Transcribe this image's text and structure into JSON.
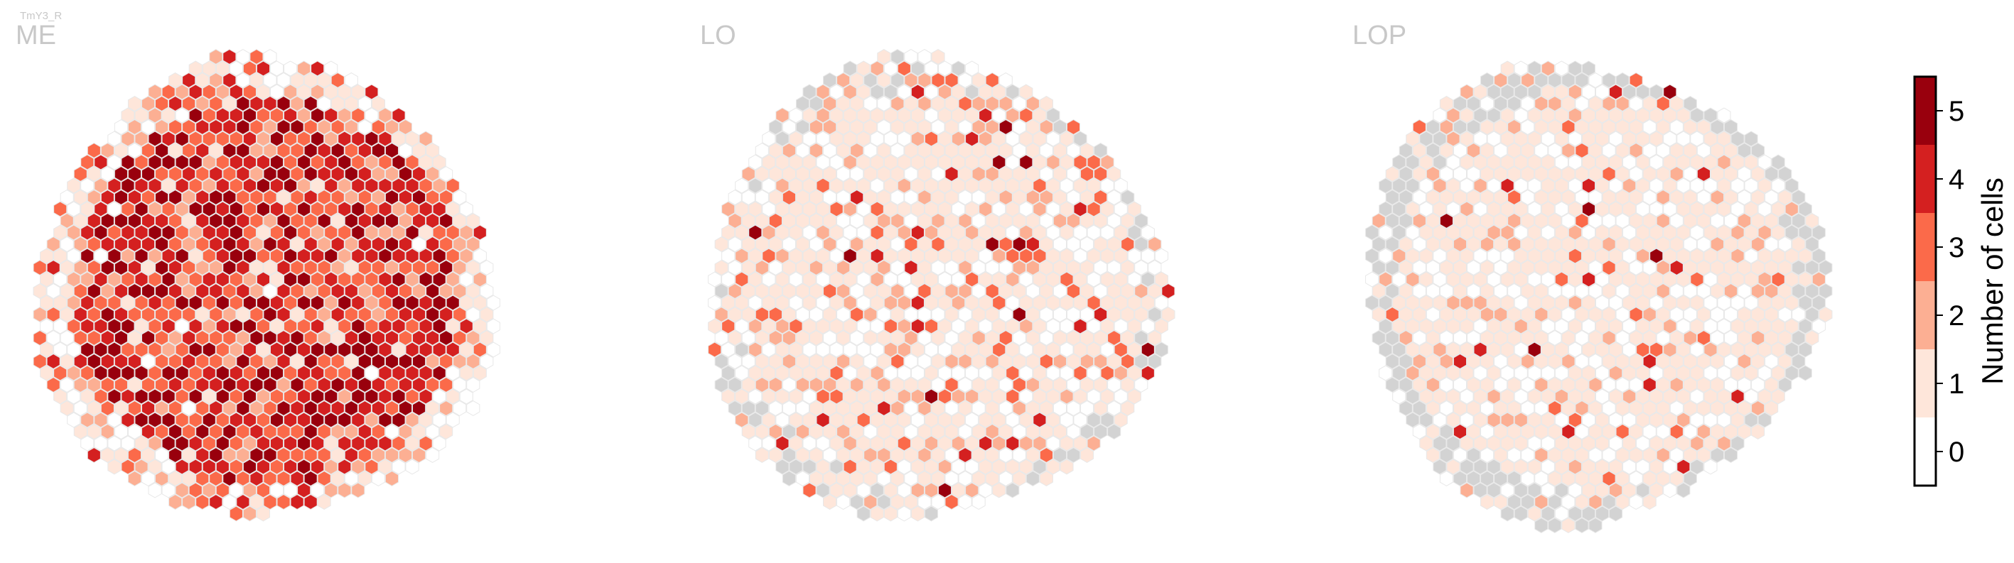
{
  "chart_data": {
    "type": "heatmap",
    "title": "TmY3_R",
    "panels": [
      {
        "name": "ME",
        "dominant_level": 4,
        "level_weights": [
          0.01,
          0.05,
          0.1,
          0.26,
          0.3,
          0.28
        ],
        "nodata_fraction": 0.0
      },
      {
        "name": "LO",
        "dominant_level": 1,
        "level_weights": [
          0.27,
          0.46,
          0.17,
          0.07,
          0.02,
          0.01
        ],
        "nodata_fraction": 0.05
      },
      {
        "name": "LOP",
        "dominant_level": 1,
        "level_weights": [
          0.3,
          0.53,
          0.12,
          0.03,
          0.015,
          0.005
        ],
        "nodata_fraction": 0.1
      }
    ],
    "colorbar": {
      "label": "Number of cells",
      "ticks": [
        "0",
        "1",
        "2",
        "3",
        "4",
        "5"
      ],
      "levels": [
        0,
        1,
        2,
        3,
        4,
        5
      ],
      "range": [
        -0.5,
        5.5
      ],
      "colors": [
        "#ffffff",
        "#fee6da",
        "#fcaf93",
        "#fb6a4a",
        "#d42020",
        "#99000d"
      ],
      "nodata_color": "#d3d3d3"
    },
    "hex_edge_color": "#e8e8e8"
  }
}
